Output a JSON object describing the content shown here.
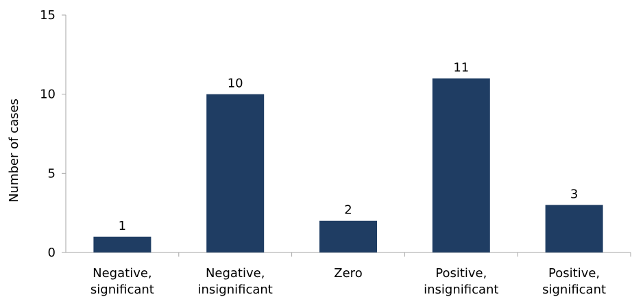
{
  "chart_data": {
    "type": "bar",
    "title": "",
    "xlabel": "",
    "ylabel": "Number of cases",
    "categories": [
      [
        "Negative,",
        "significant"
      ],
      [
        "Negative,",
        "insignificant"
      ],
      [
        "Zero"
      ],
      [
        "Positive,",
        "insignificant"
      ],
      [
        "Positive,",
        "significant"
      ]
    ],
    "values": [
      1,
      10,
      2,
      11,
      3
    ],
    "data_labels": [
      "1",
      "10",
      "2",
      "11",
      "3"
    ],
    "ylim": [
      0,
      15
    ],
    "yticks": [
      0,
      5,
      10,
      15
    ],
    "ytick_labels": [
      "0",
      "5",
      "10",
      "15"
    ],
    "grid": false,
    "legend": "none",
    "bar_color": "#1f3d63"
  }
}
